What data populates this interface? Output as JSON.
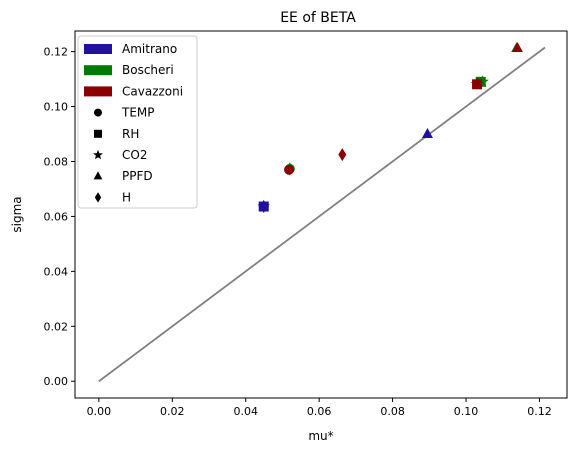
{
  "chart_data": {
    "type": "scatter",
    "title": "EE of BETA",
    "xlabel": "mu*",
    "ylabel": "sigma",
    "xlim": [
      -0.0065,
      0.1275
    ],
    "ylim": [
      -0.0061,
      0.1275
    ],
    "xticks": [
      0.0,
      0.02,
      0.04,
      0.06,
      0.08,
      0.1,
      0.12
    ],
    "xtick_labels": [
      "0.00",
      "0.02",
      "0.04",
      "0.06",
      "0.08",
      "0.10",
      "0.12"
    ],
    "yticks": [
      0.0,
      0.02,
      0.04,
      0.06,
      0.08,
      0.1,
      0.12
    ],
    "ytick_labels": [
      "0.00",
      "0.02",
      "0.04",
      "0.06",
      "0.08",
      "0.10",
      "0.12"
    ],
    "grid": false,
    "reference_line": {
      "x": [
        0.0,
        0.1215
      ],
      "y": [
        0.0,
        0.1215
      ],
      "color": "#808080"
    },
    "legend": {
      "placement": "top-left",
      "series_entries": [
        {
          "label": "Amitrano",
          "color": "#22119e"
        },
        {
          "label": "Boscheri",
          "color": "#007a00"
        },
        {
          "label": "Cavazzoni",
          "color": "#8b0000"
        }
      ],
      "marker_entries": [
        {
          "label": "TEMP",
          "marker": "circle"
        },
        {
          "label": "RH",
          "marker": "square"
        },
        {
          "label": "CO2",
          "marker": "star"
        },
        {
          "label": "PPFD",
          "marker": "triangle"
        },
        {
          "label": "H",
          "marker": "diamond"
        }
      ]
    },
    "series": [
      {
        "name": "Amitrano",
        "color": "#22119e",
        "points": [
          {
            "param": "TEMP",
            "x": 0.0449,
            "y": 0.0636
          },
          {
            "param": "RH",
            "x": 0.0449,
            "y": 0.0636
          },
          {
            "param": "CO2",
            "x": 0.0449,
            "y": 0.0636
          },
          {
            "param": "PPFD",
            "x": 0.0895,
            "y": 0.09
          },
          {
            "param": "H",
            "x": 0.0449,
            "y": 0.0636
          }
        ]
      },
      {
        "name": "Boscheri",
        "color": "#007a00",
        "points": [
          {
            "param": "TEMP",
            "x": 0.052,
            "y": 0.0773
          },
          {
            "param": "RH",
            "x": 0.104,
            "y": 0.109
          },
          {
            "param": "CO2",
            "x": 0.1045,
            "y": 0.109
          },
          {
            "param": "PPFD",
            "x": 0.1138,
            "y": 0.1213
          },
          {
            "param": "H",
            "x": 0.052,
            "y": 0.0773
          }
        ]
      },
      {
        "name": "Cavazzoni",
        "color": "#8b0000",
        "points": [
          {
            "param": "TEMP",
            "x": 0.0518,
            "y": 0.077
          },
          {
            "param": "RH",
            "x": 0.103,
            "y": 0.1081
          },
          {
            "param": "CO2",
            "x": 0.103,
            "y": 0.1081
          },
          {
            "param": "PPFD",
            "x": 0.114,
            "y": 0.1213
          },
          {
            "param": "H",
            "x": 0.0663,
            "y": 0.0825
          }
        ]
      }
    ]
  }
}
